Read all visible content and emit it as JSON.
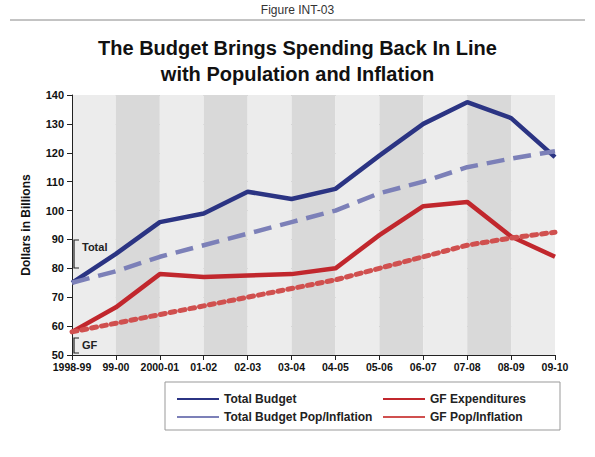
{
  "chart_data": {
    "type": "line",
    "title": "The Budget Brings Spending Back In Line\nwith Population and Inflation",
    "annotations": [
      "Figure INT-03",
      "Total",
      "GF"
    ],
    "y_label": "Dollars in Billions",
    "categories": [
      "1998-99",
      "99-00",
      "2000-01",
      "01-02",
      "02-03",
      "03-04",
      "04-05",
      "05-06",
      "06-07",
      "07-08",
      "08-09",
      "09-10"
    ],
    "series": [
      {
        "name": "Total Budget",
        "color": "#2b3483",
        "line_style": "solid",
        "values": [
          75,
          85,
          96,
          99,
          106.5,
          104,
          107.5,
          119,
          130,
          137.5,
          132,
          118.5
        ]
      },
      {
        "name": "Total Budget Pop/Inflation",
        "color": "#7c80b8",
        "line_style": "dashed",
        "values": [
          75,
          79,
          84,
          88,
          92,
          96,
          100,
          106,
          110,
          115,
          118,
          120.5
        ]
      },
      {
        "name": "GF Expenditures",
        "color": "#c1272d",
        "line_style": "solid",
        "values": [
          58,
          66.5,
          78,
          77,
          77.5,
          78,
          80,
          91.5,
          101.5,
          103,
          91,
          84
        ]
      },
      {
        "name": "GF Pop/Inflation",
        "color": "#d0504f",
        "line_style": "dotted",
        "values": [
          58,
          61,
          64,
          67,
          70,
          73,
          76,
          80,
          84,
          88,
          90.5,
          92.5
        ]
      }
    ],
    "ylim": [
      50,
      140
    ],
    "yticks": [
      50,
      60,
      70,
      80,
      90,
      100,
      110,
      120,
      130,
      140
    ],
    "grid": true
  }
}
